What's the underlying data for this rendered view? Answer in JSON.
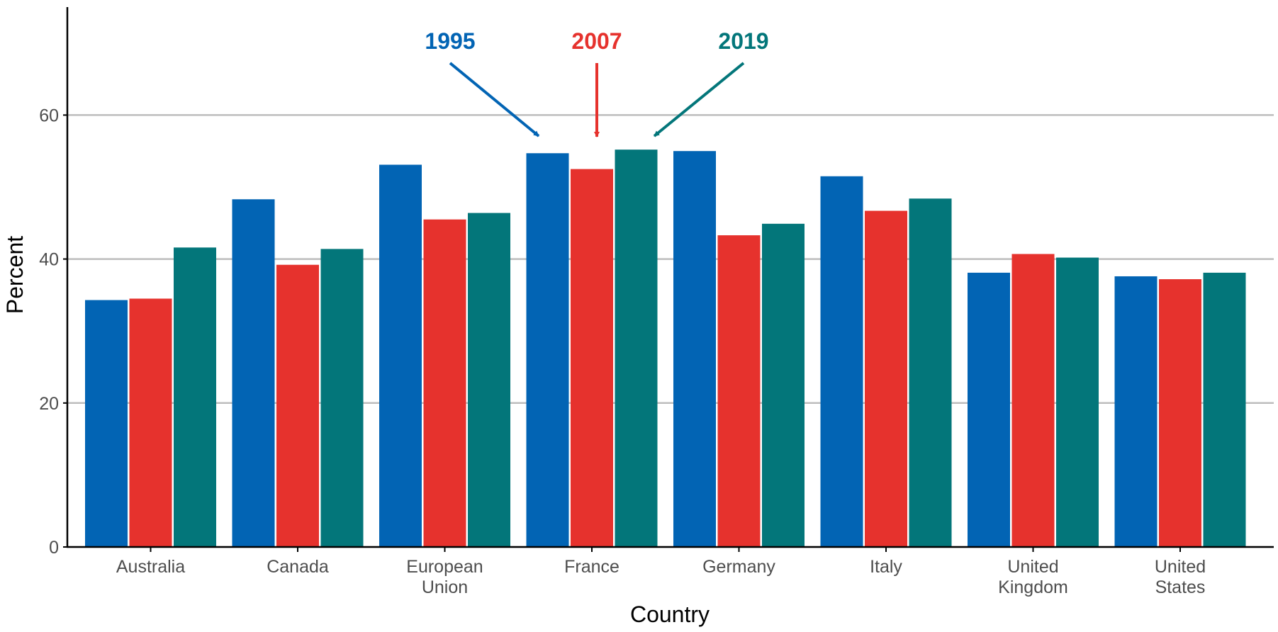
{
  "chart_data": {
    "type": "bar",
    "xlabel": "Country",
    "ylabel": "Percent",
    "ylim": [
      0,
      75
    ],
    "yticks": [
      0,
      20,
      40,
      60
    ],
    "grid": "horizontal",
    "legend": "none",
    "categories": [
      [
        "Australia"
      ],
      [
        "Canada"
      ],
      [
        "European",
        "Union"
      ],
      [
        "France"
      ],
      [
        "Germany"
      ],
      [
        "Italy"
      ],
      [
        "United",
        "Kingdom"
      ],
      [
        "United",
        "States"
      ]
    ],
    "series": [
      {
        "name": "1995",
        "color": "#0264b4",
        "values": [
          34.3,
          48.3,
          53.1,
          54.7,
          55.0,
          51.5,
          38.1,
          37.6
        ]
      },
      {
        "name": "2007",
        "color": "#e6322d",
        "values": [
          34.5,
          39.2,
          45.5,
          52.5,
          43.3,
          46.7,
          40.7,
          37.2
        ]
      },
      {
        "name": "2019",
        "color": "#03767a",
        "values": [
          41.6,
          41.4,
          46.4,
          55.2,
          44.9,
          48.4,
          40.2,
          38.1
        ]
      }
    ],
    "annotations": [
      {
        "text": "1995",
        "series": "1995",
        "points_to": "France"
      },
      {
        "text": "2007",
        "series": "2007",
        "points_to": "France"
      },
      {
        "text": "2019",
        "series": "2019",
        "points_to": "France"
      }
    ]
  }
}
